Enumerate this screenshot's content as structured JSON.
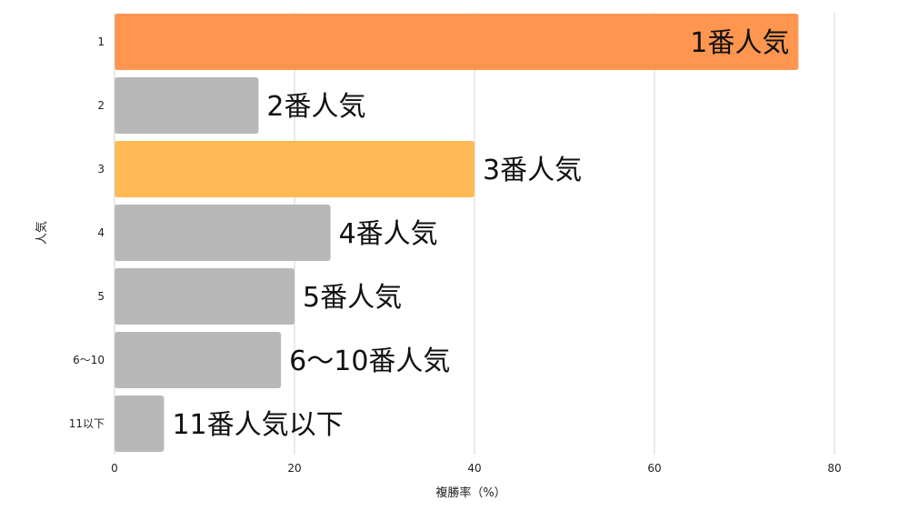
{
  "chart_data": {
    "type": "bar",
    "orientation": "horizontal",
    "categories": [
      "1",
      "2",
      "3",
      "4",
      "5",
      "6〜10",
      "11以下"
    ],
    "values": [
      76,
      16,
      40,
      24,
      20,
      18.5,
      5.5
    ],
    "bar_labels": [
      "1番人気",
      "2番人気",
      "3番人気",
      "4番人気",
      "5番人気",
      "6〜10番人気",
      "11番人気以下"
    ],
    "label_position": [
      "inside-end",
      "outside",
      "outside",
      "outside",
      "outside",
      "outside",
      "outside"
    ],
    "bar_colors": [
      "#ff9650",
      "#b8b8b8",
      "#ffb955",
      "#b8b8b8",
      "#b8b8b8",
      "#b8b8b8",
      "#b8b8b8"
    ],
    "xlabel": "複勝率（%）",
    "ylabel": "人気",
    "xlim": [
      0,
      80
    ],
    "xticks": [
      "0",
      "20",
      "40",
      "60",
      "80"
    ],
    "grid": "vertical",
    "legend": "none"
  }
}
